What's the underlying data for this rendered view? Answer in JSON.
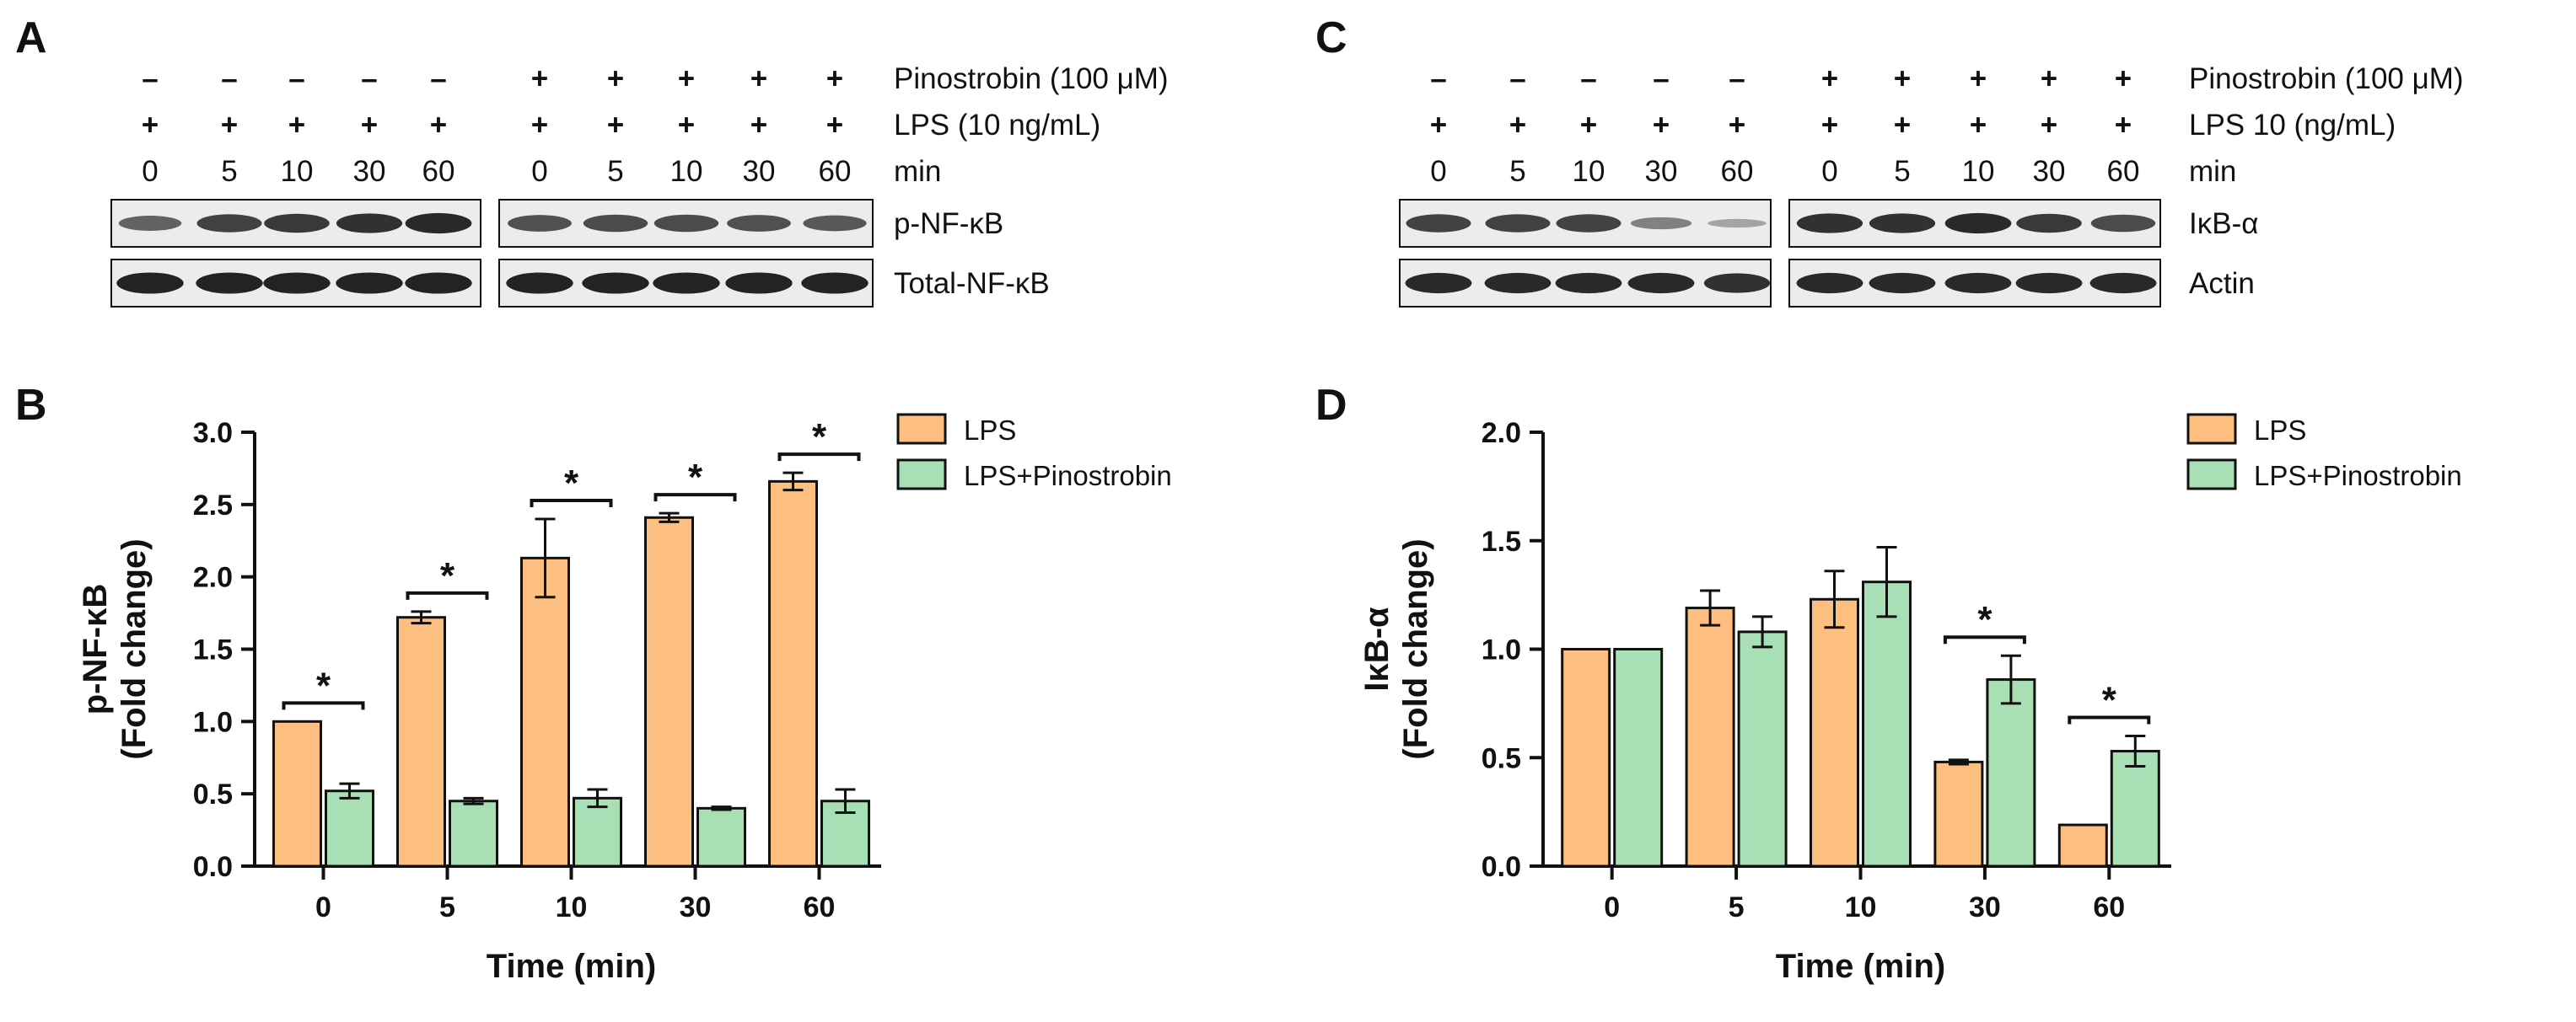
{
  "figure": {
    "panel_labels": {
      "a": "A",
      "b": "B",
      "c": "C",
      "d": "D"
    },
    "colors": {
      "lps": "#FDBF7F",
      "lps_pino": "#A9DFB4",
      "blot_bg": "#ECECEC",
      "band": "#1A1A1A",
      "stroke": "#111111"
    }
  },
  "western_a": {
    "treatments": {
      "pinostrobin": {
        "label": "Pinostrobin (100 μM)",
        "signs": [
          "–",
          "–",
          "–",
          "–",
          "–",
          "+",
          "+",
          "+",
          "+",
          "+"
        ]
      },
      "lps": {
        "label": "LPS (10 ng/mL)",
        "signs": [
          "+",
          "+",
          "+",
          "+",
          "+",
          "+",
          "+",
          "+",
          "+",
          "+"
        ]
      },
      "time": {
        "label": "min",
        "values": [
          "0",
          "5",
          "10",
          "30",
          "60",
          "0",
          "5",
          "10",
          "30",
          "60"
        ]
      }
    },
    "blots": [
      {
        "label": "p-NF-κB",
        "intensities": [
          0.55,
          0.75,
          0.8,
          0.85,
          0.9,
          0.65,
          0.7,
          0.7,
          0.65,
          0.6
        ]
      },
      {
        "label": "Total-NF-κB",
        "intensities": [
          0.95,
          0.95,
          0.95,
          0.95,
          0.95,
          0.95,
          0.95,
          0.95,
          0.95,
          0.95
        ]
      }
    ]
  },
  "western_c": {
    "treatments": {
      "pinostrobin": {
        "label": "Pinostrobin (100 μM)",
        "signs": [
          "–",
          "–",
          "–",
          "–",
          "–",
          "+",
          "+",
          "+",
          "+",
          "+"
        ]
      },
      "lps": {
        "label": "LPS 10 (ng/mL)",
        "signs": [
          "+",
          "+",
          "+",
          "+",
          "+",
          "+",
          "+",
          "+",
          "+",
          "+"
        ]
      },
      "time": {
        "label": "min",
        "values": [
          "0",
          "5",
          "10",
          "30",
          "60",
          "0",
          "5",
          "10",
          "30",
          "60"
        ]
      }
    },
    "blots": [
      {
        "label": "IκB-α",
        "intensities": [
          0.75,
          0.75,
          0.75,
          0.35,
          0.12,
          0.85,
          0.85,
          0.9,
          0.8,
          0.7
        ]
      },
      {
        "label": "Actin",
        "intensities": [
          0.9,
          0.9,
          0.9,
          0.9,
          0.85,
          0.9,
          0.9,
          0.9,
          0.9,
          0.9
        ]
      }
    ]
  },
  "chart_data": [
    {
      "panel": "B",
      "type": "bar",
      "categories": [
        "0",
        "5",
        "10",
        "30",
        "60"
      ],
      "series": [
        {
          "name": "LPS",
          "values": [
            1.0,
            1.72,
            2.13,
            2.41,
            2.66
          ],
          "errors": [
            0.0,
            0.04,
            0.27,
            0.03,
            0.06
          ]
        },
        {
          "name": "LPS+Pinostrobin",
          "values": [
            0.52,
            0.45,
            0.47,
            0.4,
            0.45
          ],
          "errors": [
            0.05,
            0.02,
            0.06,
            0.01,
            0.08
          ]
        }
      ],
      "significance": [
        "*",
        "*",
        "*",
        "*",
        "*"
      ],
      "xlabel": "Time (min)",
      "ylabel": [
        "p-NF-κB",
        "(Fold change)"
      ],
      "ylim": [
        0,
        3.0
      ],
      "yticks": [
        "0.0",
        "0.5",
        "1.0",
        "1.5",
        "2.0",
        "2.5",
        "3.0"
      ],
      "legend": "top-right"
    },
    {
      "panel": "D",
      "type": "bar",
      "categories": [
        "0",
        "5",
        "10",
        "30",
        "60"
      ],
      "series": [
        {
          "name": "LPS",
          "values": [
            1.0,
            1.19,
            1.23,
            0.48,
            0.19
          ],
          "errors": [
            0.0,
            0.08,
            0.13,
            0.01,
            0.0
          ]
        },
        {
          "name": "LPS+Pinostrobin",
          "values": [
            1.0,
            1.08,
            1.31,
            0.86,
            0.53
          ],
          "errors": [
            0.0,
            0.07,
            0.16,
            0.11,
            0.07
          ]
        }
      ],
      "significance": [
        "",
        "",
        "",
        "*",
        "*"
      ],
      "xlabel": "Time (min)",
      "ylabel": [
        "IκB-α",
        "(Fold change)"
      ],
      "ylim": [
        0,
        2.0
      ],
      "yticks": [
        "0.0",
        "0.5",
        "1.0",
        "1.5",
        "2.0"
      ],
      "legend": "top-right"
    }
  ]
}
